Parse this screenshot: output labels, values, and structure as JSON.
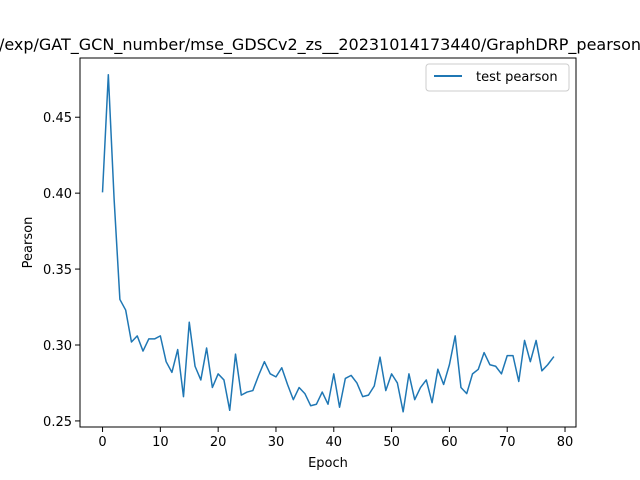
{
  "chart_data": {
    "type": "line",
    "title": "/exp/GAT_GCN_number/mse_GDSCv2_zs__20231014173440/GraphDRP_pearson",
    "xlabel": "Epoch",
    "ylabel": "Pearson",
    "xlim": [
      -3.9,
      81.9
    ],
    "ylim": [
      0.246,
      0.489
    ],
    "x_ticks": [
      0,
      10,
      20,
      30,
      40,
      50,
      60,
      70,
      80
    ],
    "y_ticks": [
      0.25,
      0.3,
      0.35,
      0.4,
      0.45
    ],
    "y_tick_labels": [
      "0.25",
      "0.30",
      "0.35",
      "0.40",
      "0.45"
    ],
    "grid": false,
    "legend_position": "top-right",
    "series": [
      {
        "name": "test pearson",
        "color": "#1f77b4",
        "x": [
          0,
          1,
          2,
          3,
          4,
          5,
          6,
          7,
          8,
          9,
          10,
          11,
          12,
          13,
          14,
          15,
          16,
          17,
          18,
          19,
          20,
          21,
          22,
          23,
          24,
          25,
          26,
          27,
          28,
          29,
          30,
          31,
          32,
          33,
          34,
          35,
          36,
          37,
          38,
          39,
          40,
          41,
          42,
          43,
          44,
          45,
          46,
          47,
          48,
          49,
          50,
          51,
          52,
          53,
          54,
          55,
          56,
          57,
          58,
          59,
          60,
          61,
          62,
          63,
          64,
          65,
          66,
          67,
          68,
          69,
          70,
          71,
          72,
          73,
          74,
          75,
          76,
          77,
          78
        ],
        "values": [
          0.401,
          0.478,
          0.396,
          0.33,
          0.323,
          0.302,
          0.306,
          0.296,
          0.304,
          0.304,
          0.306,
          0.289,
          0.282,
          0.297,
          0.266,
          0.315,
          0.286,
          0.277,
          0.298,
          0.272,
          0.281,
          0.277,
          0.257,
          0.294,
          0.267,
          0.269,
          0.27,
          0.28,
          0.289,
          0.281,
          0.279,
          0.285,
          0.274,
          0.264,
          0.272,
          0.268,
          0.26,
          0.261,
          0.269,
          0.261,
          0.281,
          0.259,
          0.278,
          0.28,
          0.275,
          0.266,
          0.267,
          0.273,
          0.292,
          0.27,
          0.281,
          0.275,
          0.256,
          0.281,
          0.264,
          0.272,
          0.277,
          0.262,
          0.284,
          0.274,
          0.287,
          0.306,
          0.272,
          0.268,
          0.281,
          0.284,
          0.295,
          0.287,
          0.286,
          0.281,
          0.293,
          0.293,
          0.276,
          0.303,
          0.289,
          0.303,
          0.283,
          0.287,
          0.292
        ]
      }
    ]
  }
}
